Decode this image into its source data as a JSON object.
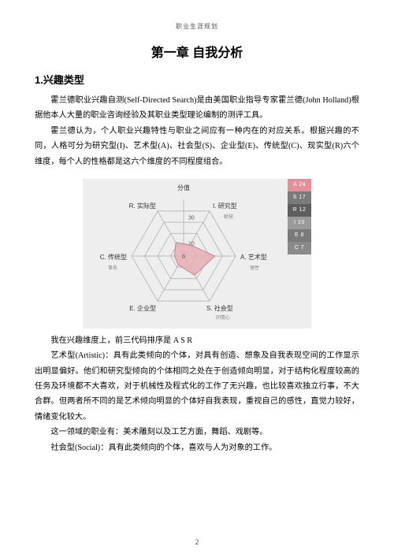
{
  "running_head": "职业生涯规划",
  "chapter_title": "第一章 自我分析",
  "section_title": "1.兴趣类型",
  "para1": "霍兰德职业兴趣自测(Self-Directed Search)是由美国职业指导专家霍兰德(John Holland)根据他本人大量的职业咨询经验及其职业类型理论编制的测评工具。",
  "para2": "霍兰德认为，个人职业兴趣特性与职业之间应有一种内在的对应关系。根据兴趣的不同，人格可分为研究型(I)、艺术型(A)、社会型(S)、企业型(E)、传统型(C)、现实型(R)六个维度，每个人的性格都是这六个维度的不同程度组合。",
  "para3": "我在兴趣维度上，前三代码排序是 A S R",
  "para4": "艺术型(Artistic)：具有此类倾向的个体，对具有创造、想象及自我表现空间的工作显示出明显偏好。他们和研究型倾向的个体相同之处在于创造倾向明显，对于结构化程度较高的任务及环境都不大喜欢，对于机械性及程式化的工作了无兴趣，也比较喜欢独立行事，不大合群。但两者所不同的是艺术倾向明显的个体好自我表现，重视自己的感性，直觉力较好，情绪变化较大。",
  "para5": "这一领域的职业有：美术雕刻以及工艺方面，舞蹈、戏剧等。",
  "para6": "社会型(Social)：具有此类倾向的个体，喜欢与人为对象的工作。",
  "page_number": "2",
  "radar": {
    "type": "radar",
    "background_color": "#eeeeee",
    "grid_stroke": "#bcbcbc",
    "grid_stroke_width": 1,
    "fill_color": "#e7adb5",
    "fill_opacity": 0.85,
    "outline_color": "#c58790",
    "center_tick_color": "#444444",
    "axes": [
      {
        "label": "I. 研究型",
        "value": 10
      },
      {
        "label": "A. 艺术型",
        "value": 24
      },
      {
        "label": "S. 社会型",
        "value": 17
      },
      {
        "label": "E. 企业型",
        "value": 8
      },
      {
        "label": "C. 传统型",
        "value": 7
      },
      {
        "label": "R. 实际型",
        "value": 12
      }
    ],
    "rings": [
      10,
      20,
      30,
      40
    ],
    "max": 40,
    "ring_labels": [
      {
        "text": "10",
        "ring": 1
      },
      {
        "text": "30",
        "ring": 3
      }
    ],
    "top_axis_label": "分值",
    "small_descriptors": [
      "聪慧",
      "理性",
      "事务",
      "同情心"
    ]
  },
  "legend": {
    "items": [
      {
        "text": "A 24",
        "bg": "#e58f99"
      },
      {
        "text": "S 17",
        "bg": "#7a7a7a"
      },
      {
        "text": "R 12",
        "bg": "#5e5e5e"
      },
      {
        "text": "I 10",
        "bg": "#9a9a9a"
      },
      {
        "text": "E 8",
        "bg": "#7a7a7a"
      },
      {
        "text": "C 7",
        "bg": "#8a8a8a"
      }
    ],
    "text_color": "#ffffff",
    "fontsize": 7
  },
  "label_fontsize": 8,
  "label_color": "#333333"
}
